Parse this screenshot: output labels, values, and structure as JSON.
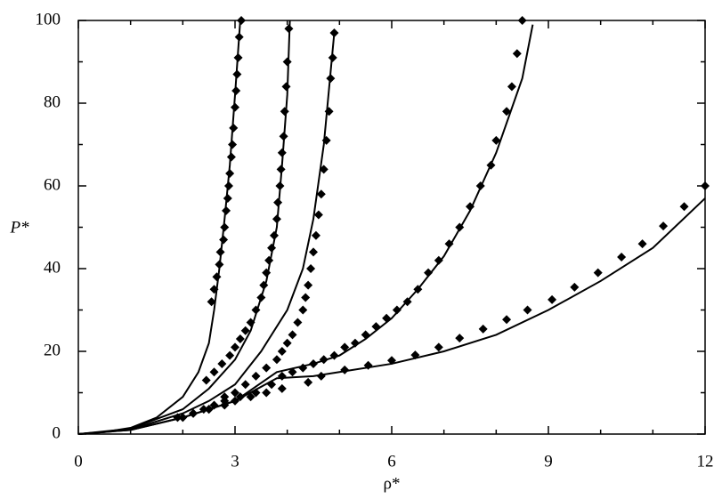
{
  "chart_data": {
    "type": "scatter",
    "xlabel": "ρ*",
    "ylabel": "P*",
    "xlim": [
      0,
      12
    ],
    "ylim": [
      0,
      100
    ],
    "xticks": [
      0,
      3,
      6,
      9,
      12
    ],
    "yticks": [
      0,
      20,
      40,
      60,
      80,
      100
    ],
    "series": [
      {
        "mode": "lines",
        "color": "#000000",
        "x": [
          0,
          0.5,
          1,
          1.5,
          2,
          2.3,
          2.5,
          2.6,
          2.7,
          2.8,
          2.9,
          3.0,
          3.1
        ],
        "values": [
          0,
          0.5,
          1.5,
          4,
          9,
          15,
          22,
          30,
          40,
          52,
          65,
          82,
          100
        ]
      },
      {
        "mode": "lines",
        "color": "#000000",
        "x": [
          0,
          1,
          2,
          2.5,
          3,
          3.3,
          3.6,
          3.8,
          3.9,
          4.0,
          4.05
        ],
        "values": [
          0,
          1.3,
          6,
          11,
          18,
          25,
          37,
          50,
          65,
          82,
          100
        ]
      },
      {
        "mode": "lines",
        "color": "#000000",
        "x": [
          0,
          1,
          2,
          2.5,
          3,
          3.5,
          4,
          4.3,
          4.5,
          4.7,
          4.9
        ],
        "values": [
          0,
          1.1,
          5,
          8,
          12,
          20,
          30,
          40,
          52,
          70,
          97
        ]
      },
      {
        "mode": "lines",
        "color": "#000000",
        "x": [
          0,
          1,
          2,
          3,
          3.8,
          4.5,
          5,
          5.5,
          6,
          6.5,
          7,
          7.5,
          8,
          8.5,
          8.7
        ],
        "values": [
          0,
          1,
          4,
          8,
          15,
          17,
          19,
          23,
          28,
          35,
          43,
          54,
          68,
          86,
          99
        ]
      },
      {
        "mode": "lines",
        "color": "#000000",
        "x": [
          0,
          1,
          2,
          3,
          3.8,
          4.5,
          5,
          6,
          7,
          8,
          9,
          10,
          11,
          12
        ],
        "values": [
          0,
          1,
          4,
          8,
          13.5,
          14,
          15,
          17,
          20,
          24,
          30,
          37,
          45,
          57
        ]
      },
      {
        "mode": "markers",
        "color": "#000000",
        "x": [
          2.55,
          2.6,
          2.65,
          2.7,
          2.72,
          2.78,
          2.8,
          2.83,
          2.86,
          2.88,
          2.9,
          2.93,
          2.95,
          2.97,
          3.0,
          3.02,
          3.04,
          3.06,
          3.08,
          3.12
        ],
        "values": [
          32,
          35,
          38,
          41,
          44,
          47,
          50,
          54,
          57,
          60,
          63,
          67,
          70,
          74,
          79,
          83,
          87,
          91,
          96,
          100
        ]
      },
      {
        "mode": "markers",
        "color": "#000000",
        "x": [
          2.45,
          2.6,
          2.75,
          2.9,
          3.0,
          3.1,
          3.2,
          3.3,
          3.4,
          3.5,
          3.55,
          3.6,
          3.65,
          3.7,
          3.75,
          3.8,
          3.82,
          3.86,
          3.88,
          3.9,
          3.93,
          3.95,
          3.98,
          4.0,
          4.03
        ],
        "values": [
          13,
          15,
          17,
          19,
          21,
          23,
          25,
          27,
          30,
          33,
          36,
          39,
          42,
          45,
          48,
          52,
          56,
          60,
          64,
          68,
          72,
          78,
          84,
          90,
          98
        ]
      },
      {
        "mode": "markers",
        "color": "#000000",
        "x": [
          2.0,
          2.2,
          2.4,
          2.6,
          2.8,
          3.0,
          3.2,
          3.4,
          3.6,
          3.8,
          3.9,
          4.0,
          4.1,
          4.2,
          4.3,
          4.35,
          4.4,
          4.45,
          4.5,
          4.55,
          4.6,
          4.65,
          4.7,
          4.75,
          4.8,
          4.83,
          4.87,
          4.9
        ],
        "values": [
          4,
          5,
          6,
          7,
          9,
          10,
          12,
          14,
          16,
          18,
          20,
          22,
          24,
          27,
          30,
          33,
          36,
          40,
          44,
          48,
          53,
          58,
          64,
          71,
          78,
          86,
          91,
          97
        ]
      },
      {
        "mode": "markers",
        "color": "#000000",
        "x": [
          2.5,
          2.8,
          3.1,
          3.4,
          3.7,
          3.9,
          4.1,
          4.3,
          4.5,
          4.7,
          4.9,
          5.1,
          5.3,
          5.5,
          5.7,
          5.9,
          6.1,
          6.3,
          6.5,
          6.7,
          6.9,
          7.1,
          7.3,
          7.5,
          7.7,
          7.9,
          8.0,
          8.2,
          8.3,
          8.4,
          8.5
        ],
        "values": [
          6,
          8,
          9,
          10,
          12,
          14,
          15,
          16,
          17,
          18,
          19,
          21,
          22,
          24,
          26,
          28,
          30,
          32,
          35,
          39,
          42,
          46,
          50,
          55,
          60,
          65,
          71,
          78,
          84,
          92,
          100
        ]
      },
      {
        "mode": "markers",
        "color": "#000000",
        "x": [
          1.9,
          2.2,
          2.5,
          2.8,
          3.0,
          3.3,
          3.6,
          3.9,
          4.4,
          4.65,
          5.1,
          5.55,
          6.0,
          6.45,
          6.9,
          7.3,
          7.75,
          8.2,
          8.6,
          9.07,
          9.5,
          9.95,
          10.4,
          10.8,
          11.2,
          11.6,
          12.0
        ],
        "values": [
          4,
          5,
          6,
          7,
          8,
          9,
          10,
          11,
          12.5,
          14,
          15.5,
          16.6,
          17.8,
          19.1,
          21,
          23.2,
          25.4,
          27.7,
          30,
          32.5,
          35.5,
          39,
          42.8,
          46,
          50.3,
          55,
          60
        ]
      }
    ]
  }
}
